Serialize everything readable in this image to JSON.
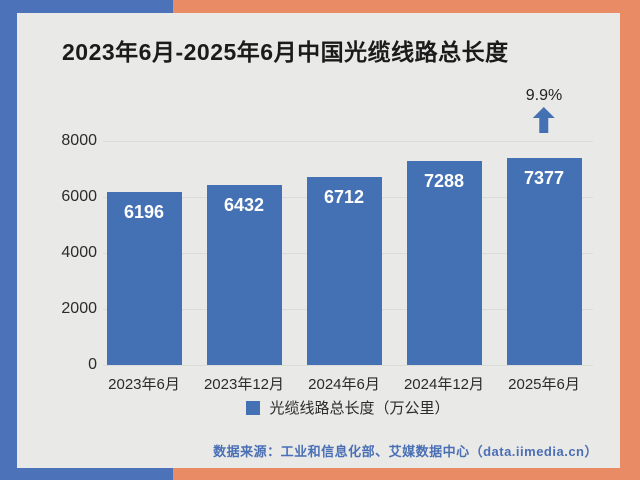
{
  "title": "2023年6月-2025年6月中国光缆线路总长度",
  "frame": {
    "blue_accent": "#4C72B9",
    "orange_accent": "#E98C66",
    "canvas_bg": "#E9E9E7"
  },
  "annotation": {
    "growth_label": "9.9%",
    "icon": "up-arrow"
  },
  "legend": {
    "marker_color": "#4470B4",
    "label": "光缆线路总长度（万公里）"
  },
  "source": "数据来源：工业和信息化部、艾媒数据中心（data.iimedia.cn）",
  "chart_data": {
    "type": "bar",
    "title": "2023年6月-2025年6月中国光缆线路总长度",
    "categories": [
      "2023年6月",
      "2023年12月",
      "2024年6月",
      "2024年12月",
      "2025年6月"
    ],
    "values": [
      6196,
      6432,
      6712,
      7288,
      7377
    ],
    "series_name": "光缆线路总长度（万公里）",
    "xlabel": "",
    "ylabel": "",
    "ylim": [
      0,
      8000
    ],
    "yticks": [
      0,
      2000,
      4000,
      6000,
      8000
    ],
    "grid": true,
    "legend_position": "bottom",
    "bar_color": "#4470B4",
    "value_label_color": "#FFFFFF",
    "annotations": [
      {
        "text": "9.9%",
        "type": "growth-up-arrow",
        "target_category": "2025年6月"
      }
    ]
  }
}
